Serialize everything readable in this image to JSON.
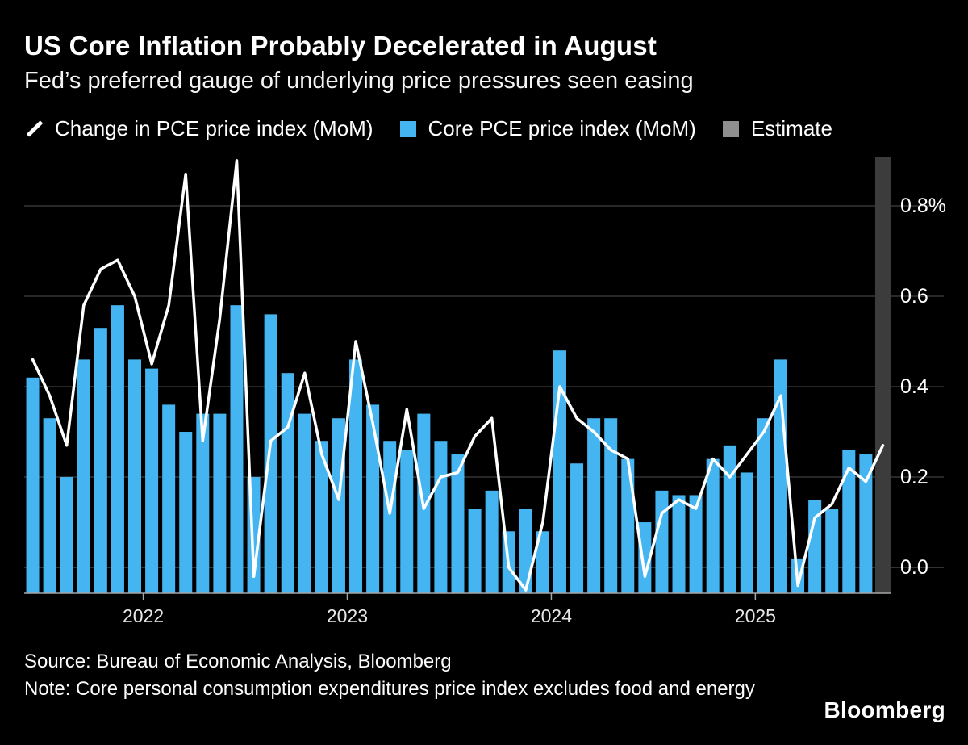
{
  "header": {
    "title": "US Core Inflation Probably Decelerated in August",
    "subtitle": "Fed’s preferred gauge of underlying price pressures seen easing"
  },
  "legend": {
    "items": [
      {
        "label": "Change in PCE price index (MoM)",
        "type": "line",
        "color": "#ffffff"
      },
      {
        "label": "Core PCE price index (MoM)",
        "type": "bar",
        "color": "#45b5f2"
      },
      {
        "label": "Estimate",
        "type": "band",
        "color": "#8f8f8f"
      }
    ]
  },
  "chart_data": {
    "type": "bar+line",
    "title": "US Core Inflation Probably Decelerated in August",
    "subtitle": "Fed’s preferred gauge of underlying price pressures seen easing",
    "unit": "%",
    "x": [
      "2021-06",
      "2021-07",
      "2021-08",
      "2021-09",
      "2021-10",
      "2021-11",
      "2021-12",
      "2022-01",
      "2022-02",
      "2022-03",
      "2022-04",
      "2022-05",
      "2022-06",
      "2022-07",
      "2022-08",
      "2022-09",
      "2022-10",
      "2022-11",
      "2022-12",
      "2023-01",
      "2023-02",
      "2023-03",
      "2023-04",
      "2023-05",
      "2023-06",
      "2023-07",
      "2023-08",
      "2023-09",
      "2023-10",
      "2023-11",
      "2023-12",
      "2024-01",
      "2024-02",
      "2024-03",
      "2024-04",
      "2024-05",
      "2024-06",
      "2024-07",
      "2024-08",
      "2024-09",
      "2024-10",
      "2024-11",
      "2024-12",
      "2025-01",
      "2025-02",
      "2025-03",
      "2025-04",
      "2025-05",
      "2025-06",
      "2025-07",
      "2025-08"
    ],
    "series": [
      {
        "name": "Change in PCE price index (MoM)",
        "type": "line",
        "color": "#ffffff",
        "values": [
          0.46,
          0.38,
          0.27,
          0.58,
          0.66,
          0.68,
          0.6,
          0.45,
          0.58,
          0.87,
          0.28,
          0.55,
          0.9,
          -0.02,
          0.28,
          0.31,
          0.43,
          0.25,
          0.15,
          0.5,
          0.32,
          0.12,
          0.35,
          0.13,
          0.2,
          0.21,
          0.29,
          0.33,
          0.0,
          -0.05,
          0.1,
          0.4,
          0.33,
          0.3,
          0.26,
          0.24,
          -0.02,
          0.12,
          0.15,
          0.13,
          0.24,
          0.2,
          0.25,
          0.3,
          0.38,
          -0.04,
          0.11,
          0.14,
          0.22,
          0.19,
          0.27
        ]
      },
      {
        "name": "Core PCE price index (MoM)",
        "type": "bar",
        "color": "#45b5f2",
        "values": [
          0.42,
          0.33,
          0.2,
          0.46,
          0.53,
          0.58,
          0.46,
          0.44,
          0.36,
          0.3,
          0.34,
          0.34,
          0.58,
          0.2,
          0.56,
          0.43,
          0.34,
          0.28,
          0.33,
          0.46,
          0.36,
          0.28,
          0.26,
          0.34,
          0.28,
          0.25,
          0.13,
          0.17,
          0.08,
          0.13,
          0.08,
          0.48,
          0.23,
          0.33,
          0.33,
          0.24,
          0.1,
          0.17,
          0.16,
          0.16,
          0.24,
          0.27,
          0.21,
          0.33,
          0.46,
          0.02,
          0.15,
          0.13,
          0.26,
          0.25,
          null
        ]
      },
      {
        "name": "Estimate",
        "type": "band",
        "color": "#3c3c3c",
        "x": "2025-08"
      }
    ],
    "estimate_index": 50,
    "ylim": [
      -0.057,
      0.907
    ],
    "yticks": [
      0,
      0.2,
      0.4,
      0.6,
      0.8
    ],
    "ytick_labels": [
      "0.0",
      "0.2",
      "0.4",
      "0.6",
      "0.8%"
    ],
    "xticks": [
      "2022",
      "2023",
      "2024",
      "2025"
    ],
    "xtick_month_indices": [
      7,
      19,
      31,
      43
    ],
    "grid": true,
    "legend_position": "top",
    "colors": {
      "background": "#000000",
      "grid": "#4f4f4f",
      "axis": "#a6a6a6",
      "bar": "#45b5f2",
      "line": "#ffffff",
      "estimate_band": "#3c3c3c",
      "text": "#ffffff"
    }
  },
  "footer": {
    "source": "Source: Bureau of Economic Analysis, Bloomberg",
    "note": "Note: Core personal consumption expenditures price index excludes food and energy",
    "logo": "Bloomberg"
  }
}
